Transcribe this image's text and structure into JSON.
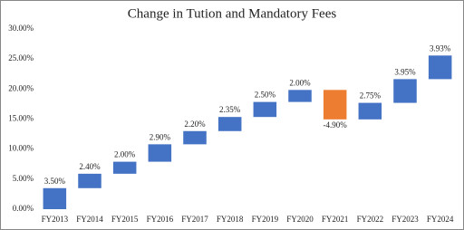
{
  "chart_data": {
    "type": "waterfall",
    "title": "Change in Tution and Mandatory Fees",
    "categories": [
      "FY2013",
      "FY2014",
      "FY2015",
      "FY2016",
      "FY2017",
      "FY2018",
      "FY2019",
      "FY2020",
      "FY2021",
      "FY2022",
      "FY2023",
      "FY2024"
    ],
    "values": [
      3.5,
      2.4,
      2.0,
      2.9,
      2.2,
      2.35,
      2.5,
      2.0,
      -4.9,
      2.75,
      3.95,
      3.93
    ],
    "value_labels": [
      "3.50%",
      "2.40%",
      "2.00%",
      "2.90%",
      "2.20%",
      "2.35%",
      "2.50%",
      "2.00%",
      "-4.90%",
      "2.75%",
      "3.95%",
      "3.93%"
    ],
    "color": "#4472c4",
    "decrease_color": "#ed7d31",
    "ylim": [
      0,
      30
    ],
    "yticks": [
      {
        "value": 0,
        "label": "0.00%"
      },
      {
        "value": 5,
        "label": "5.00%"
      },
      {
        "value": 10,
        "label": "10.00%"
      },
      {
        "value": 15,
        "label": "15.00%"
      },
      {
        "value": 20,
        "label": "20.00%"
      },
      {
        "value": 25,
        "label": "25.00%"
      },
      {
        "value": 30,
        "label": "30.00%"
      }
    ],
    "grid": false
  }
}
